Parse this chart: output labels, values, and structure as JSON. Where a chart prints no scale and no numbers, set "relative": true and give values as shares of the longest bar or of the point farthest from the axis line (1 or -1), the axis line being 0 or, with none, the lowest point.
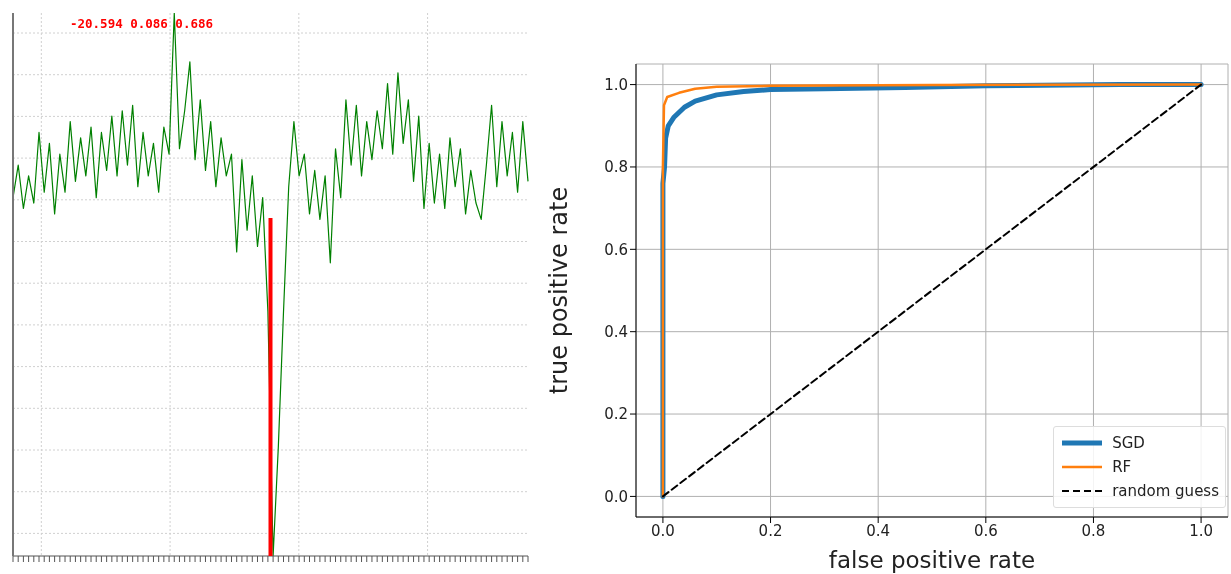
{
  "chart_data": [
    {
      "type": "line",
      "relative": true,
      "tick_labels": false,
      "grid": true,
      "categories": [
        null,
        null,
        null,
        null,
        null,
        null,
        null,
        null,
        null,
        null,
        null,
        null,
        null,
        null,
        null,
        null,
        null,
        null,
        null,
        null,
        null,
        null,
        null,
        null,
        null,
        null,
        null,
        null,
        null,
        null,
        null,
        null,
        null,
        null,
        null,
        null,
        null,
        null,
        null,
        null,
        null,
        null,
        null,
        null,
        null,
        null,
        null,
        null,
        null,
        null,
        null,
        null,
        null,
        null,
        null,
        null,
        null,
        null,
        null,
        null,
        null,
        null,
        null,
        null,
        null,
        null,
        null,
        null,
        null,
        null,
        null,
        null,
        null,
        null,
        null,
        null,
        null,
        null,
        null,
        null,
        null,
        null,
        null,
        null,
        null,
        null,
        null,
        null,
        null,
        null,
        null,
        null,
        null,
        null,
        null,
        null,
        null,
        null,
        null,
        null
      ],
      "series": [
        {
          "type": "line",
          "color": "#008000",
          "values": [
            0.66,
            0.72,
            0.64,
            0.7,
            0.65,
            0.78,
            0.67,
            0.76,
            0.63,
            0.74,
            0.67,
            0.8,
            0.69,
            0.77,
            0.7,
            0.79,
            0.66,
            0.78,
            0.71,
            0.81,
            0.7,
            0.82,
            0.72,
            0.83,
            0.68,
            0.78,
            0.7,
            0.76,
            0.67,
            0.79,
            0.74,
            1.0,
            0.75,
            0.82,
            0.91,
            0.73,
            0.84,
            0.71,
            0.8,
            0.68,
            0.77,
            0.7,
            0.74,
            0.56,
            0.73,
            0.6,
            0.7,
            0.57,
            0.66,
            0.45,
            0.0,
            0.2,
            0.45,
            0.68,
            0.8,
            0.7,
            0.74,
            0.63,
            0.71,
            0.62,
            0.7,
            0.54,
            0.75,
            0.66,
            0.84,
            0.72,
            0.83,
            0.7,
            0.8,
            0.73,
            0.82,
            0.75,
            0.87,
            0.74,
            0.89,
            0.76,
            0.84,
            0.69,
            0.81,
            0.64,
            0.76,
            0.65,
            0.74,
            0.64,
            0.77,
            0.68,
            0.75,
            0.63,
            0.71,
            0.65,
            0.62,
            0.72,
            0.83,
            0.68,
            0.8,
            0.7,
            0.78,
            0.67,
            0.8,
            0.69
          ]
        }
      ],
      "annotations": [
        "-20.594 0.086 0.686"
      ]
    },
    {
      "type": "line",
      "xlabel": "false positive rate",
      "ylabel": "true positive rate",
      "grid": true,
      "legend": "bottom right",
      "xlim": [
        -0.05,
        1.05
      ],
      "ylim": [
        -0.05,
        1.05
      ],
      "xticks": [
        {
          "value": 0,
          "label": "0.0"
        },
        {
          "value": 0.2,
          "label": "0.2"
        },
        {
          "value": 0.4,
          "label": "0.4"
        },
        {
          "value": 0.6,
          "label": "0.6"
        },
        {
          "value": 0.8,
          "label": "0.8"
        },
        {
          "value": 1,
          "label": "1.0"
        }
      ],
      "yticks": [
        {
          "value": 0,
          "label": "0.0"
        },
        {
          "value": 0.2,
          "label": "0.2"
        },
        {
          "value": 0.4,
          "label": "0.4"
        },
        {
          "value": 0.6,
          "label": "0.6"
        },
        {
          "value": 0.8,
          "label": "0.8"
        },
        {
          "value": 1,
          "label": "1.0"
        }
      ],
      "series": [
        {
          "name": "SGD",
          "color": "#1f77b4",
          "x": [
            0,
            0,
            0.003,
            0.005,
            0.01,
            0.02,
            0.04,
            0.06,
            0.1,
            0.15,
            0.2,
            0.3,
            0.45,
            0.6,
            0.85,
            1.0
          ],
          "values": [
            0,
            0.76,
            0.8,
            0.87,
            0.9,
            0.92,
            0.945,
            0.96,
            0.975,
            0.983,
            0.988,
            0.99,
            0.993,
            0.997,
            1.0,
            1.0
          ]
        },
        {
          "name": "RF",
          "color": "#ff7f0e",
          "x": [
            0,
            0,
            0.002,
            0.008,
            0.03,
            0.06,
            0.1,
            0.2,
            0.5,
            1.0
          ],
          "values": [
            0,
            0.8,
            0.95,
            0.97,
            0.98,
            0.99,
            0.995,
            0.997,
            0.999,
            1.0
          ]
        },
        {
          "name": "random guess",
          "color": "#000000",
          "line_style": "dashed",
          "x": [
            0,
            1
          ],
          "values": [
            0,
            1
          ]
        }
      ]
    }
  ]
}
